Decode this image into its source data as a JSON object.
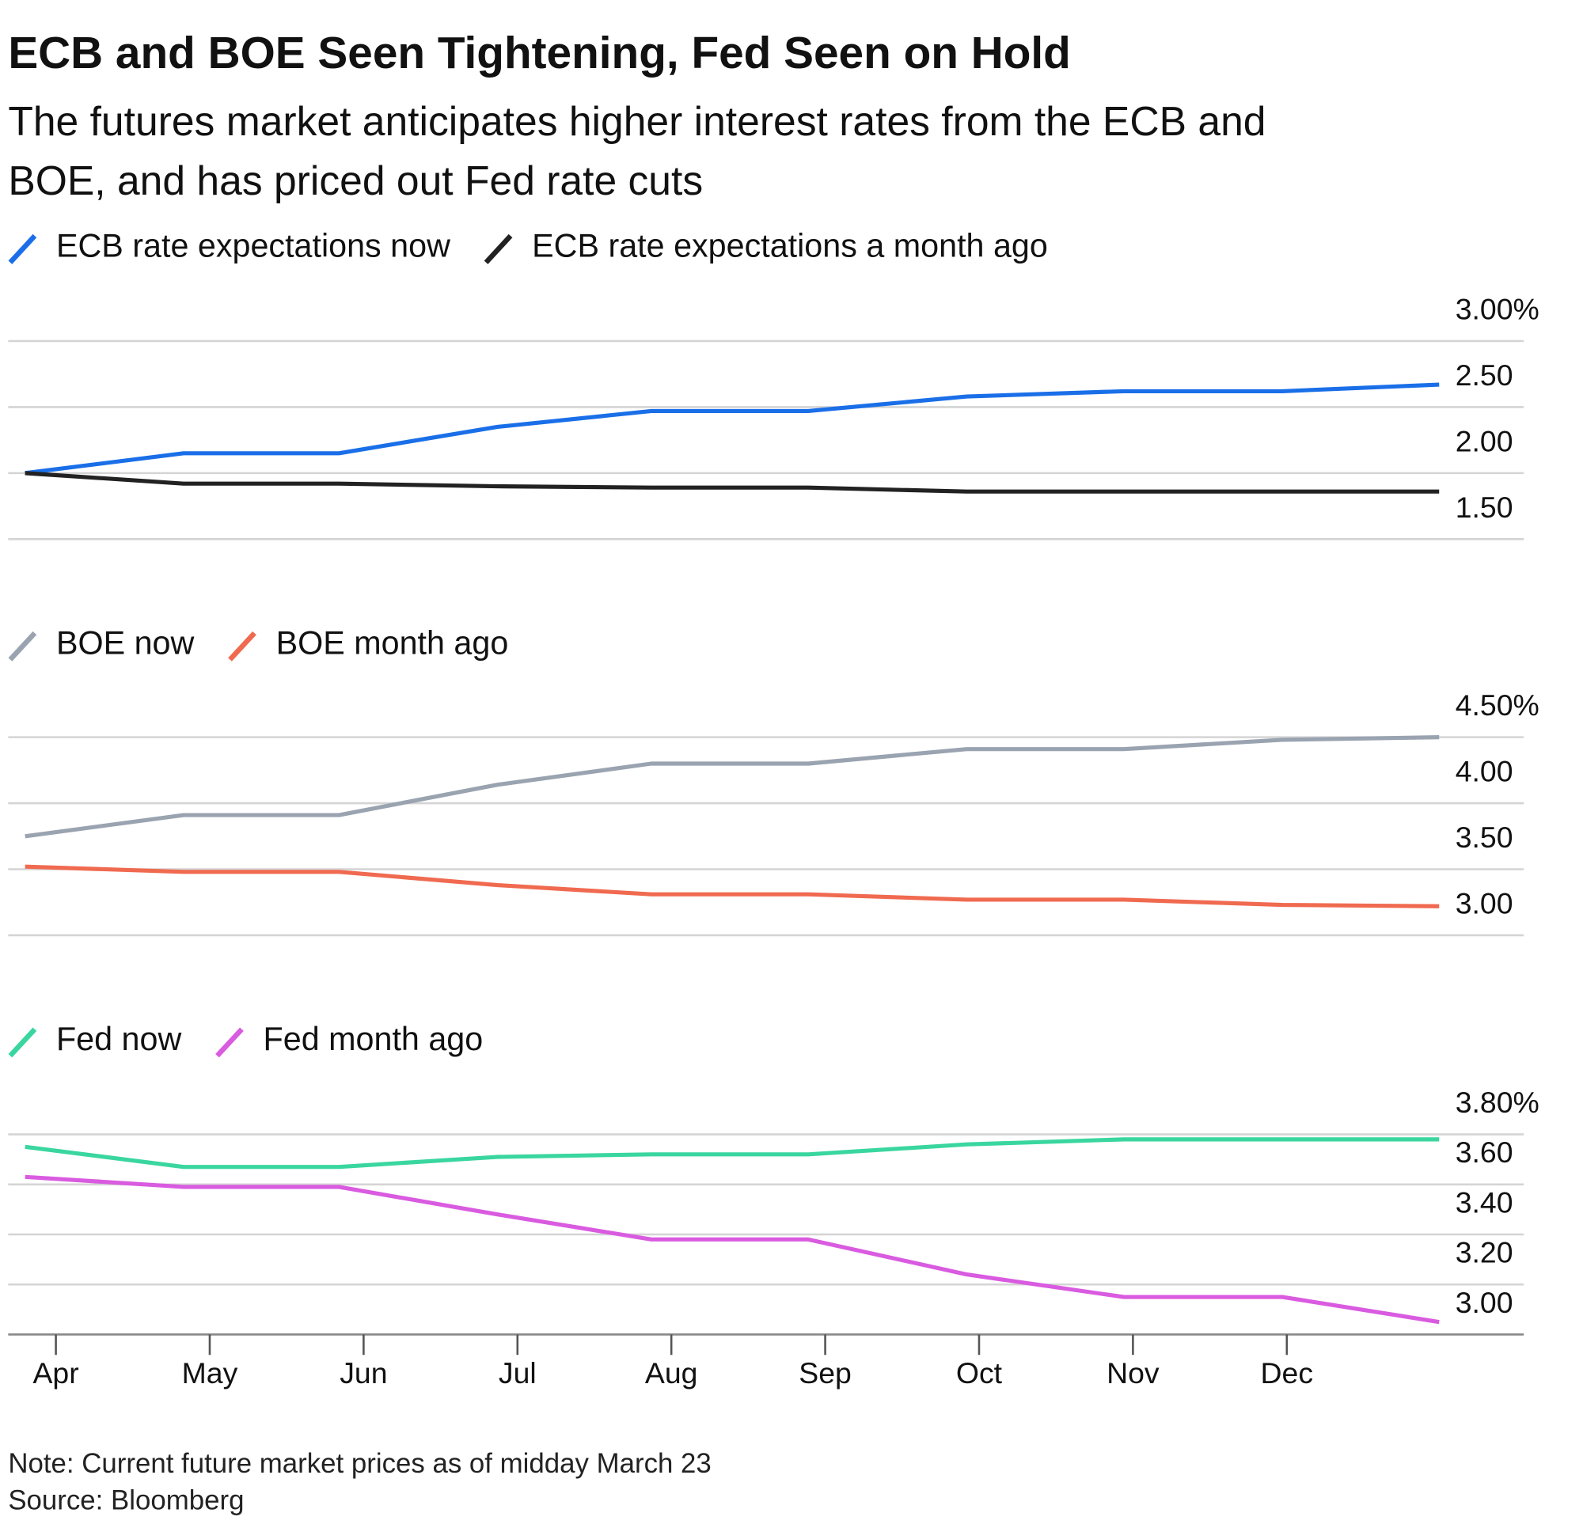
{
  "title": "ECB and BOE Seen Tightening, Fed Seen on Hold",
  "subtitle": [
    "The futures market anticipates higher interest rates from the ECB and",
    "BOE, and has priced out Fed rate cuts"
  ],
  "note": "Note: Current future market prices as of midday March 23",
  "source": "Source: Bloomberg",
  "chart_data": [
    {
      "type": "line",
      "x": [
        -0.2,
        0.83,
        1.84,
        2.87,
        3.87,
        4.89,
        5.92,
        6.94,
        7.97,
        8.99
      ],
      "xlim": [
        -0.31,
        9.54
      ],
      "series": [
        {
          "name": "ECB rate expectations now",
          "color": "#1a6fe8",
          "values": [
            2.0,
            2.15,
            2.15,
            2.35,
            2.47,
            2.47,
            2.58,
            2.62,
            2.62,
            2.67
          ]
        },
        {
          "name": "ECB rate expectations a month ago",
          "color": "#222222",
          "values": [
            2.0,
            1.92,
            1.92,
            1.9,
            1.89,
            1.89,
            1.86,
            1.86,
            1.86,
            1.86
          ]
        }
      ],
      "ylim": [
        1.5,
        3.0
      ],
      "yticks": [
        {
          "value": 3.0,
          "label": "3.00%"
        },
        {
          "value": 2.5,
          "label": "2.50"
        },
        {
          "value": 2.0,
          "label": "2.00"
        },
        {
          "value": 1.5,
          "label": "1.50"
        }
      ],
      "grid": true
    },
    {
      "type": "line",
      "x": [
        -0.2,
        0.83,
        1.84,
        2.87,
        3.87,
        4.89,
        5.92,
        6.94,
        7.97,
        8.99
      ],
      "xlim": [
        -0.31,
        9.54
      ],
      "series": [
        {
          "name": "BOE now",
          "color": "#9aa3b0",
          "values": [
            3.75,
            3.91,
            3.91,
            4.14,
            4.3,
            4.3,
            4.41,
            4.41,
            4.48,
            4.5
          ]
        },
        {
          "name": "BOE month ago",
          "color": "#f06a50",
          "values": [
            3.52,
            3.48,
            3.48,
            3.38,
            3.31,
            3.31,
            3.27,
            3.27,
            3.23,
            3.22
          ]
        }
      ],
      "ylim": [
        3.0,
        4.5
      ],
      "yticks": [
        {
          "value": 4.5,
          "label": "4.50%"
        },
        {
          "value": 4.0,
          "label": "4.00"
        },
        {
          "value": 3.5,
          "label": "3.50"
        },
        {
          "value": 3.0,
          "label": "3.00"
        }
      ],
      "grid": true
    },
    {
      "type": "line",
      "x": [
        -0.2,
        0.83,
        1.84,
        2.87,
        3.87,
        4.89,
        5.92,
        6.94,
        7.97,
        8.99
      ],
      "xlim": [
        -0.31,
        9.54
      ],
      "xticks": [
        {
          "value": 0,
          "label": "Apr"
        },
        {
          "value": 1,
          "label": "May"
        },
        {
          "value": 2,
          "label": "Jun"
        },
        {
          "value": 3,
          "label": "Jul"
        },
        {
          "value": 4,
          "label": "Aug"
        },
        {
          "value": 5,
          "label": "Sep"
        },
        {
          "value": 6,
          "label": "Oct"
        },
        {
          "value": 7,
          "label": "Nov"
        },
        {
          "value": 8,
          "label": "Dec"
        }
      ],
      "series": [
        {
          "name": "Fed now",
          "color": "#3ad6a0",
          "values": [
            3.75,
            3.67,
            3.67,
            3.71,
            3.72,
            3.72,
            3.76,
            3.78,
            3.78,
            3.78
          ]
        },
        {
          "name": "Fed month ago",
          "color": "#d95be0",
          "values": [
            3.63,
            3.59,
            3.59,
            3.48,
            3.38,
            3.38,
            3.24,
            3.15,
            3.15,
            3.05
          ]
        }
      ],
      "ylim": [
        3.0,
        3.8
      ],
      "yticks": [
        {
          "value": 3.8,
          "label": "3.80%"
        },
        {
          "value": 3.6,
          "label": "3.60"
        },
        {
          "value": 3.4,
          "label": "3.40"
        },
        {
          "value": 3.2,
          "label": "3.20"
        },
        {
          "value": 3.0,
          "label": "3.00"
        }
      ],
      "grid": true
    }
  ]
}
